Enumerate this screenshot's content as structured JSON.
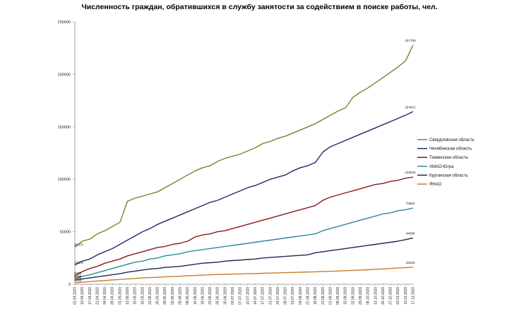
{
  "chart_data": {
    "type": "line",
    "title": "Численность граждан, обратившихся в службу занятости за содействием в поиске работы, чел.",
    "xlabel": "",
    "ylabel": "",
    "ylim": [
      0,
      250000
    ],
    "yticks": [
      "0",
      "50000",
      "100000",
      "150000",
      "200000",
      "250000"
    ],
    "grid": false,
    "legend_position": "right",
    "x": [
      "01.04.2020",
      "10.04.2020",
      "17.04.2020",
      "21.04.2020",
      "24.04.2020",
      "28.04.2020",
      "01.05.2020",
      "12.05.2020",
      "15.05.2020",
      "19.05.2020",
      "22.05.2020",
      "26.05.2020",
      "29.05.2020",
      "02.06.2020",
      "05.06.2020",
      "09.06.2020",
      "16.06.2020",
      "19.06.2020",
      "23.06.2020",
      "26.06.2020",
      "30.06.2020",
      "03.07.2020",
      "07.07.2020",
      "10.07.2020",
      "14.07.2020",
      "17.07.2020",
      "21.07.2020",
      "24.07.2020",
      "28.07.2020",
      "31.07.2020",
      "04.08.2020",
      "07.08.2020",
      "18.08.2020",
      "21.08.2020",
      "01.09.2020",
      "08.09.2020",
      "15.09.2020",
      "22.09.2020",
      "29.09.2020",
      "06.10.2020",
      "13.10.2020",
      "20.10.2020",
      "27.10.2020",
      "03.11.2020",
      "10.11.2020",
      "17.11.2020"
    ],
    "series": [
      {
        "name": "Свердловская область",
        "color": "#6a8a2a",
        "end_label": "227708",
        "values": [
          35372,
          41000,
          43000,
          48000,
          51000,
          55000,
          59000,
          79000,
          82000,
          84000,
          86000,
          88000,
          92000,
          96000,
          100000,
          104000,
          108000,
          111000,
          113000,
          117000,
          120000,
          122000,
          124000,
          127000,
          130000,
          134000,
          136000,
          139000,
          141000,
          144000,
          147000,
          150000,
          153000,
          157000,
          161000,
          165000,
          168000,
          178000,
          183000,
          187000,
          192000,
          197000,
          202000,
          207000,
          213000,
          227708
        ]
      },
      {
        "name": "Челябинская область",
        "color": "#1f2a66",
        "end_label": "164421",
        "values": [
          18276,
          22000,
          24000,
          28000,
          31000,
          34000,
          38000,
          42000,
          46000,
          50000,
          53000,
          57000,
          60000,
          63000,
          66000,
          69000,
          72000,
          75000,
          78000,
          80000,
          83000,
          86000,
          89000,
          92000,
          94000,
          97000,
          100000,
          102000,
          104000,
          108000,
          111000,
          113000,
          116000,
          126000,
          131000,
          134000,
          137000,
          140000,
          143000,
          146000,
          149000,
          152000,
          155000,
          158000,
          161000,
          164421
        ]
      },
      {
        "name": "Тюменская область",
        "color": "#8b1a1a",
        "end_label": "102042",
        "values": [
          8200,
          12000,
          15000,
          17000,
          20000,
          22000,
          24000,
          27000,
          29000,
          31000,
          33000,
          35000,
          36000,
          38000,
          39000,
          41000,
          45000,
          47000,
          48000,
          50000,
          51000,
          53000,
          55000,
          57000,
          59000,
          61000,
          63000,
          65000,
          67000,
          69000,
          71000,
          73000,
          75000,
          80000,
          83000,
          85000,
          87000,
          89000,
          91000,
          93000,
          95000,
          96000,
          98000,
          99000,
          101000,
          102042
        ]
      },
      {
        "name": "ХМАО-Югра",
        "color": "#2b8a9a",
        "end_label": "72603",
        "values": [
          5400,
          7500,
          9000,
          11000,
          13000,
          15000,
          17000,
          19000,
          21000,
          22000,
          24000,
          25000,
          27000,
          28000,
          29000,
          31000,
          32000,
          33000,
          34000,
          35000,
          36000,
          37000,
          38000,
          39000,
          40000,
          41000,
          42000,
          43000,
          44000,
          45000,
          46000,
          47000,
          48000,
          51000,
          53000,
          55000,
          57000,
          59000,
          61000,
          63000,
          65000,
          67000,
          68000,
          70000,
          71000,
          72603
        ]
      },
      {
        "name": "Курганская область",
        "color": "#1a2a55",
        "end_label": "44096",
        "values": [
          4200,
          5000,
          6000,
          7000,
          8000,
          9000,
          10000,
          11500,
          12500,
          13500,
          14500,
          15000,
          16000,
          16500,
          17000,
          18000,
          19000,
          20000,
          20500,
          21000,
          22000,
          22500,
          23000,
          23500,
          24000,
          25000,
          25500,
          26000,
          26500,
          27000,
          27500,
          28000,
          30000,
          31000,
          32000,
          33000,
          34000,
          35000,
          36000,
          37000,
          38000,
          39000,
          40000,
          41000,
          42500,
          44096
        ]
      },
      {
        "name": "ЯНАО",
        "color": "#c87d2c",
        "end_label": "16229",
        "values": [
          1300,
          2000,
          2500,
          3000,
          3500,
          4000,
          4500,
          5000,
          5500,
          6000,
          6300,
          6600,
          7000,
          7300,
          7600,
          8000,
          8300,
          8600,
          9000,
          9200,
          9400,
          9600,
          9800,
          10000,
          10200,
          10400,
          10600,
          10800,
          11000,
          11200,
          11400,
          11600,
          11800,
          12000,
          12300,
          12600,
          12900,
          13200,
          13500,
          13800,
          14200,
          14600,
          15000,
          15400,
          15800,
          16229
        ]
      }
    ]
  }
}
